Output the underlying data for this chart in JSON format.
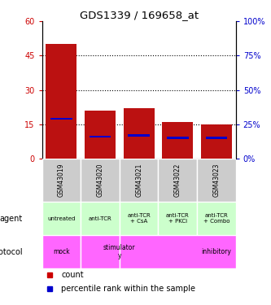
{
  "title": "GDS1339 / 169658_at",
  "samples": [
    "GSM43019",
    "GSM43020",
    "GSM43021",
    "GSM43022",
    "GSM43023"
  ],
  "count_values": [
    50,
    21,
    22,
    16,
    15
  ],
  "percentile_values": [
    29,
    16,
    17,
    15,
    15
  ],
  "left_yaxis": {
    "min": 0,
    "max": 60,
    "ticks": [
      0,
      15,
      30,
      45,
      60
    ],
    "color": "#cc0000"
  },
  "right_yaxis": {
    "min": 0,
    "max": 100,
    "ticks": [
      0,
      25,
      50,
      75,
      100
    ],
    "color": "#0000cc"
  },
  "bar_color": "#bb1111",
  "percentile_color": "#0000cc",
  "agent_labels": [
    "untreated",
    "anti-TCR",
    "anti-TCR\n+ CsA",
    "anti-TCR\n+ PKCi",
    "anti-TCR\n+ Combo"
  ],
  "agent_bg": "#ccffcc",
  "protocol_bg": "#ff66ff",
  "sample_bg": "#cccccc",
  "legend_count_color": "#cc0000",
  "legend_percentile_color": "#0000cc",
  "legend_count_label": "count",
  "legend_percentile_label": "percentile rank within the sample",
  "agent_row_label": "agent",
  "protocol_row_label": "protocol",
  "proto_data": [
    {
      "label": "mock",
      "start": 0,
      "end": 0
    },
    {
      "label": "stimulator\ny",
      "start": 1,
      "end": 1
    },
    {
      "label": "inhibitory",
      "start": 2,
      "end": 4
    }
  ]
}
